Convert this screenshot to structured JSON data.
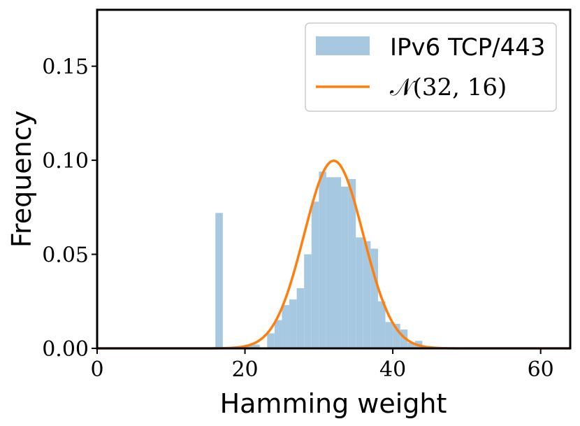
{
  "chart_data": {
    "type": "bar",
    "title": "",
    "xlabel": "Hamming weight",
    "ylabel": "Frequency",
    "xlim": [
      0,
      64
    ],
    "ylim": [
      0,
      0.18
    ],
    "xticks": [
      0,
      20,
      40,
      60
    ],
    "xtick_labels": [
      "0",
      "20",
      "40",
      "60"
    ],
    "yticks": [
      0.0,
      0.05,
      0.1,
      0.15
    ],
    "ytick_labels": [
      "0.00",
      "0.05",
      "0.10",
      "0.15"
    ],
    "grid": false,
    "legend_position": "top-right",
    "series": [
      {
        "name": "IPv6 TCP/443",
        "kind": "histogram",
        "color": "#a6c9e1",
        "bins": [
          {
            "x": 16,
            "w": 1,
            "value": 0.072
          },
          {
            "x": 20,
            "w": 1,
            "value": 0.002
          },
          {
            "x": 21,
            "w": 1,
            "value": 0.002
          },
          {
            "x": 23,
            "w": 1,
            "value": 0.008
          },
          {
            "x": 24,
            "w": 1,
            "value": 0.015
          },
          {
            "x": 25,
            "w": 1,
            "value": 0.023
          },
          {
            "x": 26,
            "w": 1,
            "value": 0.026
          },
          {
            "x": 27,
            "w": 1,
            "value": 0.032
          },
          {
            "x": 28,
            "w": 1,
            "value": 0.05
          },
          {
            "x": 29,
            "w": 1,
            "value": 0.078
          },
          {
            "x": 30,
            "w": 1,
            "value": 0.094
          },
          {
            "x": 31,
            "w": 1,
            "value": 0.091
          },
          {
            "x": 32,
            "w": 1,
            "value": 0.091
          },
          {
            "x": 33,
            "w": 1,
            "value": 0.086
          },
          {
            "x": 34,
            "w": 1,
            "value": 0.09
          },
          {
            "x": 35,
            "w": 1,
            "value": 0.059
          },
          {
            "x": 36,
            "w": 1,
            "value": 0.057
          },
          {
            "x": 37,
            "w": 1,
            "value": 0.053
          },
          {
            "x": 38,
            "w": 1,
            "value": 0.025
          },
          {
            "x": 39,
            "w": 1,
            "value": 0.014
          },
          {
            "x": 40,
            "w": 1,
            "value": 0.013
          },
          {
            "x": 41,
            "w": 1,
            "value": 0.01
          },
          {
            "x": 42,
            "w": 1,
            "value": 0.003
          },
          {
            "x": 43,
            "w": 1,
            "value": 0.004
          }
        ]
      },
      {
        "name": "𝒩(32, 16)",
        "kind": "normal_curve",
        "color": "#ff7f0e",
        "mean": 32,
        "variance": 16,
        "x_range": [
          0,
          64
        ]
      }
    ]
  }
}
